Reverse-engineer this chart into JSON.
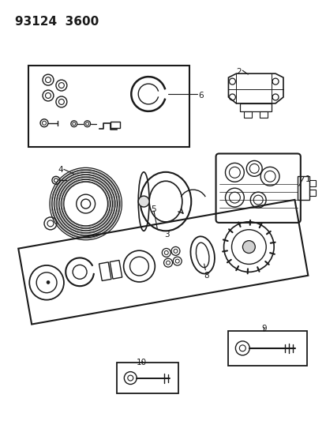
{
  "title": "93124  3600",
  "background_color": "#ffffff",
  "line_color": "#1a1a1a",
  "fig_width": 4.14,
  "fig_height": 5.33,
  "dpi": 100
}
